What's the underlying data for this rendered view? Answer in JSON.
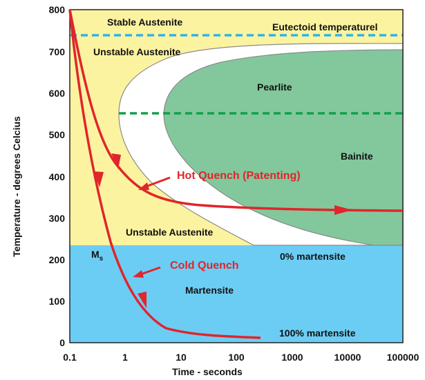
{
  "axes": {
    "xlabel": "Time - seconds",
    "ylabel": "Temperature - degrees Celcius",
    "x_ticks": [
      "0.1",
      "1",
      "10",
      "100",
      "1000",
      "10000",
      "100000"
    ],
    "y_ticks": [
      "0",
      "100",
      "200",
      "300",
      "400",
      "500",
      "600",
      "700",
      "800"
    ]
  },
  "regions": {
    "stable_austenite": "Stable Austenite",
    "unstable_austenite_top": "Unstable Austenite",
    "unstable_austenite_bottom": "Unstable Austenite",
    "pearlite": "Pearlite",
    "bainite": "Bainite",
    "martensite": "Martensite",
    "eutectoid": "Eutectoid temperaturel",
    "ms_main": "M",
    "ms_sub": "s",
    "zero_martensite": "0% martensite",
    "hundred_martensite": "100% martensite"
  },
  "curves": {
    "hot_quench": "Hot Quench (Patenting)",
    "cold_quench": "Cold Quench"
  },
  "colors": {
    "austenite": "#fbf39f",
    "martensite": "#6ccdf4",
    "transformation": "#82c89c",
    "quench": "#e0252b",
    "eutectoid_line": "#2fb3e8",
    "pearlite_bainite_line": "#12a04a"
  },
  "chart_data": {
    "type": "line",
    "x_scale": "log",
    "xlim": [
      0.1,
      100000
    ],
    "ylim": [
      0,
      800
    ],
    "xlabel": "Time - seconds",
    "ylabel": "Temperature - degrees Celcius",
    "eutectoid_temperature": 735,
    "pearlite_bainite_boundary": 550,
    "ms_temperature": 235,
    "series": [
      {
        "name": "Hot Quench (Patenting)",
        "x": [
          0.1,
          0.2,
          0.3,
          0.5,
          0.8,
          1.2,
          2,
          5,
          20,
          100,
          1000,
          10000,
          100000
        ],
        "y": [
          800,
          640,
          520,
          430,
          380,
          350,
          335,
          327,
          323,
          322,
          321,
          320,
          318
        ]
      },
      {
        "name": "Cold Quench",
        "x": [
          0.1,
          0.15,
          0.25,
          0.4,
          0.6,
          1,
          2,
          4,
          10,
          50,
          250
        ],
        "y": [
          800,
          600,
          420,
          320,
          250,
          170,
          100,
          50,
          30,
          18,
          14
        ]
      }
    ]
  }
}
